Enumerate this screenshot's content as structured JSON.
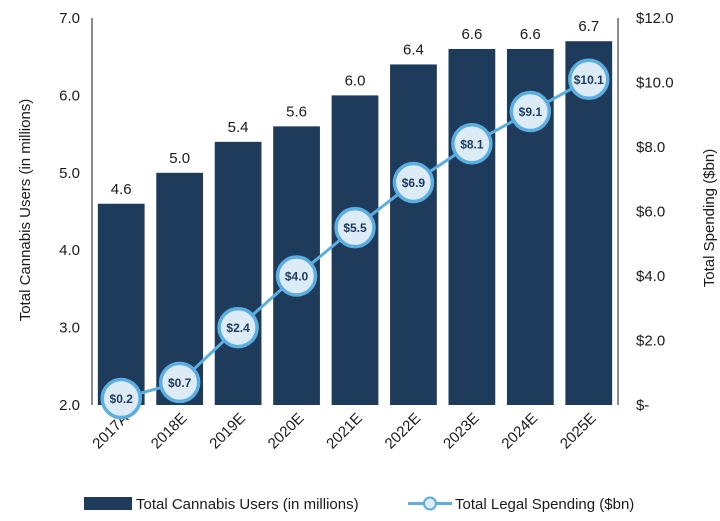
{
  "chart_data": {
    "type": "bar",
    "categories": [
      "2017A",
      "2018E",
      "2019E",
      "2020E",
      "2021E",
      "2022E",
      "2023E",
      "2024E",
      "2025E"
    ],
    "series": [
      {
        "name": "Total Cannabis Users (in millions)",
        "type": "bar",
        "axis": "left",
        "color": "#1f3b5c",
        "values": [
          4.6,
          5.0,
          5.4,
          5.6,
          6.0,
          6.4,
          6.6,
          6.6,
          6.7
        ],
        "labels": [
          "4.6",
          "5.0",
          "5.4",
          "5.6",
          "6.0",
          "6.4",
          "6.6",
          "6.6",
          "6.7"
        ]
      },
      {
        "name": "Total Legal Spending ($bn)",
        "type": "line",
        "axis": "right",
        "color": "#5aaee0",
        "marker_fill": "#dcebf6",
        "values": [
          0.2,
          0.7,
          2.4,
          4.0,
          5.5,
          6.9,
          8.1,
          9.1,
          10.1
        ],
        "labels": [
          "$0.2",
          "$0.7",
          "$2.4",
          "$4.0",
          "$5.5",
          "$6.9",
          "$8.1",
          "$9.1",
          "$10.1"
        ]
      }
    ],
    "y_left": {
      "label": "Total Cannabis Users (in millions)",
      "range": [
        2.0,
        7.0
      ],
      "ticks": [
        2.0,
        3.0,
        4.0,
        5.0,
        6.0,
        7.0
      ],
      "tick_labels": [
        "2.0",
        "3.0",
        "4.0",
        "5.0",
        "6.0",
        "7.0"
      ]
    },
    "y_right": {
      "label": "Total Spending  ($bn)",
      "range": [
        0,
        12
      ],
      "ticks": [
        0,
        2,
        4,
        6,
        8,
        10,
        12
      ],
      "tick_labels": [
        "$-",
        "$2.0",
        "$4.0",
        "$6.0",
        "$8.0",
        "$10.0",
        "$12.0"
      ]
    },
    "grid": false,
    "legend_position": "bottom"
  }
}
